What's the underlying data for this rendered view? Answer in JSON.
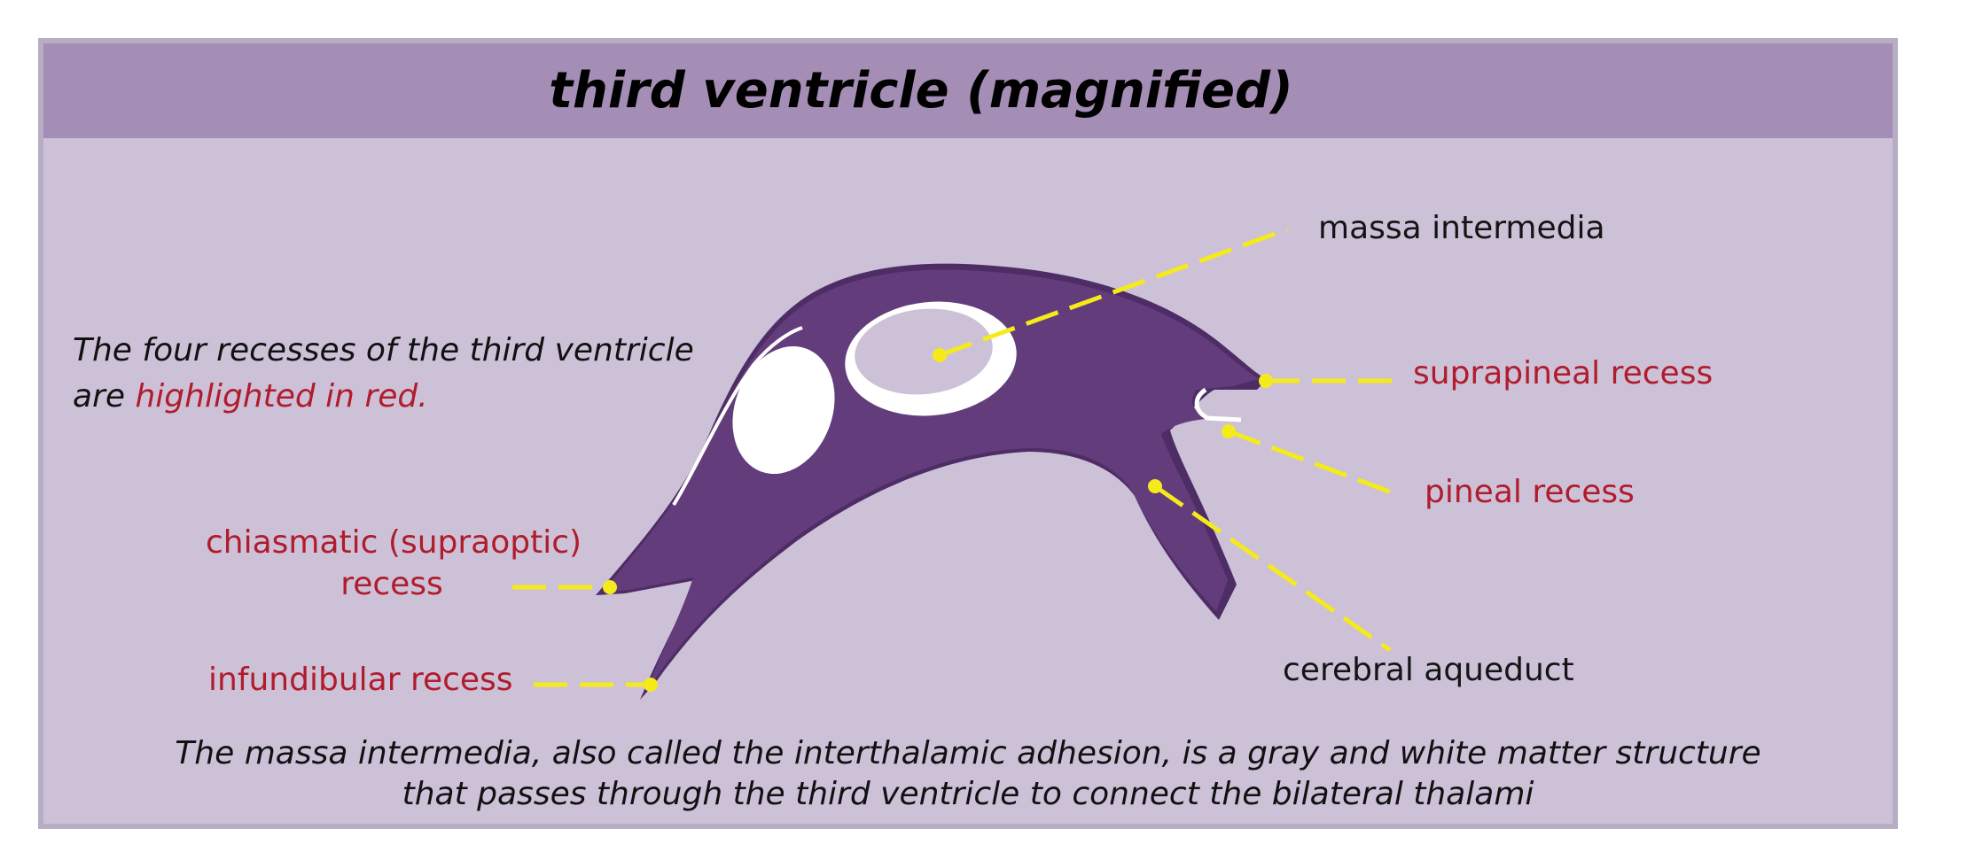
{
  "title": "third ventricle (magnified)",
  "note": {
    "line1": "The four recesses of the third ventricle",
    "line2_prefix": "are ",
    "line2_highlight": "highlighted in red."
  },
  "labels": {
    "massa_intermedia": "massa intermedia",
    "suprapineal_recess": "suprapineal recess",
    "pineal_recess": "pineal recess",
    "cerebral_aqueduct": "cerebral aqueduct",
    "chiasmatic_line1": "chiasmatic (supraoptic)",
    "chiasmatic_line2": "recess",
    "infundibular_recess": "infundibular recess"
  },
  "caption": {
    "line1": "The massa intermedia, also called the interthalamic adhesion, is a gray and white matter structure",
    "line2": "that passes through the third ventricle to connect the bilateral thalami"
  },
  "colors": {
    "background": "#cdc1d8",
    "title_bar": "#a48eb6",
    "ventricle": "#633c7c",
    "leader_line": "#f5ea1a",
    "recess_label": "#b01c2c"
  }
}
